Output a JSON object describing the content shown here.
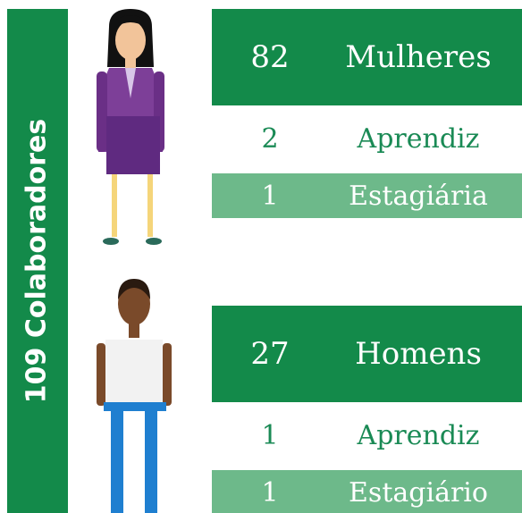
{
  "sidebar": {
    "title": "109 Colaboradores"
  },
  "groups": [
    {
      "rows": [
        {
          "number": "82",
          "label": "Mulheres"
        },
        {
          "number": "2",
          "label": "Aprendiz"
        },
        {
          "number": "1",
          "label": "Estagiária"
        }
      ]
    },
    {
      "rows": [
        {
          "number": "27",
          "label": "Homens"
        },
        {
          "number": "1",
          "label": "Aprendiz"
        },
        {
          "number": "1",
          "label": "Estagiário"
        }
      ]
    }
  ]
}
